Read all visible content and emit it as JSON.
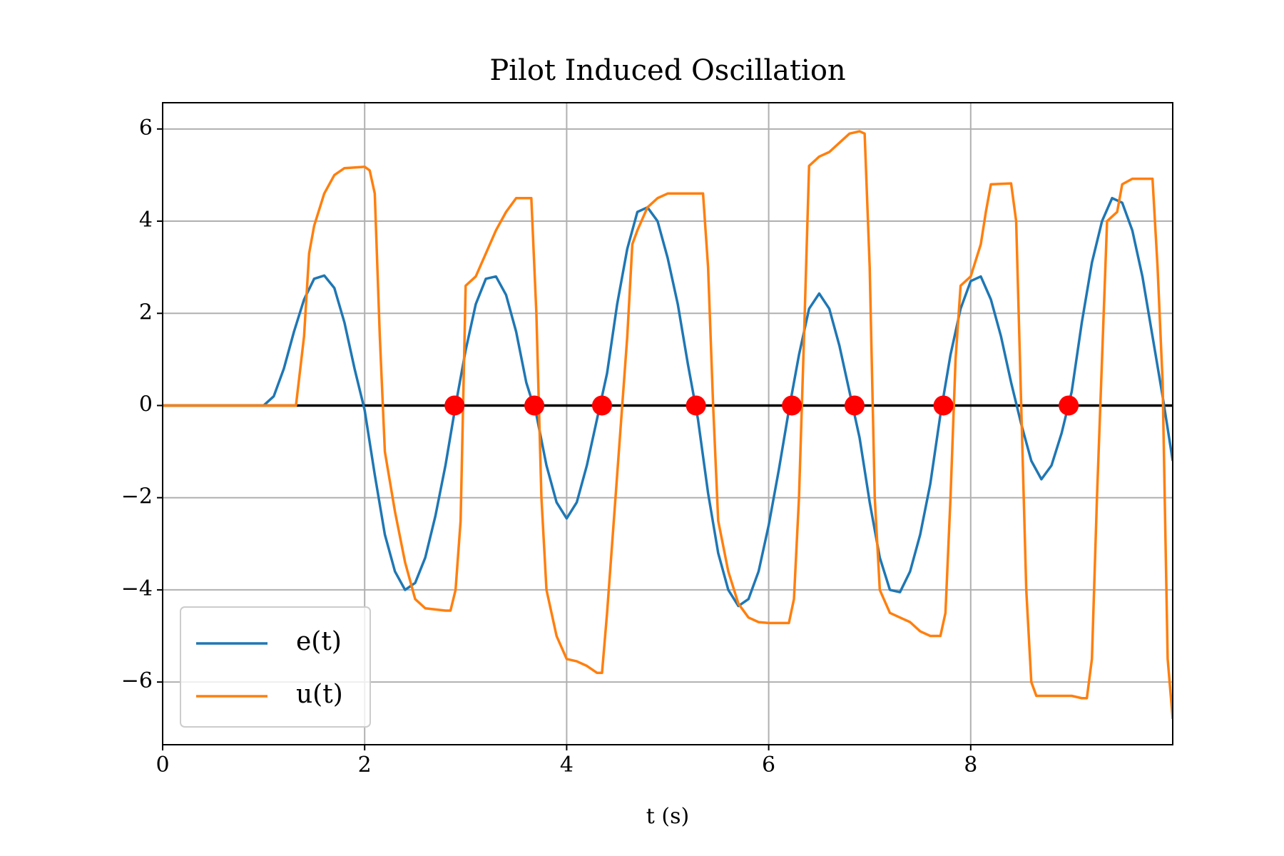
{
  "chart_data": {
    "type": "line",
    "title": "Pilot Induced Oscillation",
    "x_label": "t (s)",
    "xlim": [
      0,
      10
    ],
    "xticks": [
      0,
      2,
      4,
      6,
      8
    ],
    "ylim": [
      -7.36,
      6.57
    ],
    "yticks": [
      {
        "value": -6,
        "label": "−6"
      },
      {
        "value": -4,
        "label": "−4"
      },
      {
        "value": -2,
        "label": "−2"
      },
      0,
      2,
      4,
      6
    ],
    "grid": true,
    "legend": "lower left",
    "hlines": [
      {
        "y": 0,
        "color": "#000000"
      }
    ],
    "series": [
      {
        "name": "e(t)",
        "type": "line",
        "color": "#1f77b4",
        "x": [
          0,
          0.5,
          1.0,
          1.1,
          1.2,
          1.3,
          1.4,
          1.5,
          1.6,
          1.7,
          1.8,
          1.9,
          2.0,
          2.1,
          2.2,
          2.3,
          2.4,
          2.5,
          2.6,
          2.7,
          2.8,
          2.9,
          3.0,
          3.1,
          3.2,
          3.3,
          3.4,
          3.5,
          3.6,
          3.7,
          3.8,
          3.9,
          4.0,
          4.1,
          4.2,
          4.3,
          4.4,
          4.5,
          4.6,
          4.7,
          4.8,
          4.9,
          5.0,
          5.1,
          5.2,
          5.3,
          5.4,
          5.5,
          5.6,
          5.7,
          5.8,
          5.9,
          6.0,
          6.1,
          6.2,
          6.3,
          6.4,
          6.5,
          6.6,
          6.7,
          6.8,
          6.9,
          7.0,
          7.1,
          7.2,
          7.3,
          7.4,
          7.5,
          7.6,
          7.7,
          7.8,
          7.9,
          8.0,
          8.1,
          8.2,
          8.3,
          8.4,
          8.5,
          8.6,
          8.7,
          8.8,
          8.9,
          9.0,
          9.1,
          9.2,
          9.3,
          9.4,
          9.5,
          9.6,
          9.7,
          9.8,
          9.9,
          10.0
        ],
        "values": [
          0,
          0,
          0,
          0.2,
          0.8,
          1.6,
          2.3,
          2.75,
          2.82,
          2.55,
          1.8,
          0.8,
          -0.1,
          -1.5,
          -2.8,
          -3.6,
          -4.0,
          -3.85,
          -3.3,
          -2.4,
          -1.3,
          0,
          1.2,
          2.2,
          2.75,
          2.8,
          2.4,
          1.6,
          0.5,
          -0.2,
          -1.3,
          -2.1,
          -2.45,
          -2.1,
          -1.3,
          -0.3,
          0.7,
          2.2,
          3.4,
          4.2,
          4.3,
          4.0,
          3.2,
          2.2,
          0.9,
          -0.3,
          -1.9,
          -3.2,
          -4.0,
          -4.35,
          -4.2,
          -3.6,
          -2.6,
          -1.4,
          -0.1,
          1.1,
          2.1,
          2.43,
          2.1,
          1.3,
          0.3,
          -0.7,
          -2.1,
          -3.3,
          -4.0,
          -4.05,
          -3.6,
          -2.8,
          -1.7,
          -0.2,
          1.1,
          2.1,
          2.7,
          2.8,
          2.3,
          1.5,
          0.5,
          -0.4,
          -1.2,
          -1.6,
          -1.3,
          -0.6,
          0.3,
          1.8,
          3.1,
          4.0,
          4.5,
          4.4,
          3.8,
          2.8,
          1.5,
          0.2,
          -1.2
        ]
      },
      {
        "name": "u(t)",
        "type": "line",
        "color": "#ff7f0e",
        "x": [
          0,
          1.32,
          1.4,
          1.45,
          1.5,
          1.6,
          1.7,
          1.8,
          2.0,
          2.05,
          2.1,
          2.15,
          2.2,
          2.3,
          2.4,
          2.5,
          2.6,
          2.8,
          2.85,
          2.9,
          2.95,
          3.0,
          3.1,
          3.2,
          3.3,
          3.4,
          3.5,
          3.65,
          3.7,
          3.75,
          3.8,
          3.9,
          4.0,
          4.1,
          4.2,
          4.3,
          4.35,
          4.4,
          4.5,
          4.6,
          4.65,
          4.7,
          4.8,
          4.9,
          5.0,
          5.35,
          5.4,
          5.45,
          5.5,
          5.6,
          5.7,
          5.8,
          5.9,
          6.0,
          6.2,
          6.25,
          6.3,
          6.35,
          6.4,
          6.5,
          6.6,
          6.7,
          6.8,
          6.9,
          6.95,
          7.0,
          7.05,
          7.1,
          7.2,
          7.3,
          7.4,
          7.5,
          7.6,
          7.7,
          7.75,
          7.8,
          7.85,
          7.9,
          8.0,
          8.1,
          8.15,
          8.2,
          8.4,
          8.45,
          8.5,
          8.55,
          8.6,
          8.65,
          9.0,
          9.1,
          9.15,
          9.2,
          9.25,
          9.3,
          9.35,
          9.4,
          9.45,
          9.5,
          9.6,
          9.8,
          9.85,
          9.9,
          9.95,
          10.0
        ],
        "values": [
          0,
          0,
          1.5,
          3.3,
          3.9,
          4.6,
          5.0,
          5.15,
          5.18,
          5.1,
          4.6,
          1.5,
          -1.0,
          -2.3,
          -3.4,
          -4.2,
          -4.4,
          -4.45,
          -4.45,
          -4.0,
          -2.5,
          2.6,
          2.8,
          3.3,
          3.8,
          4.2,
          4.5,
          4.5,
          2.0,
          -2.0,
          -4.0,
          -5.0,
          -5.5,
          -5.55,
          -5.65,
          -5.8,
          -5.8,
          -4.5,
          -1.5,
          1.5,
          3.5,
          3.8,
          4.3,
          4.5,
          4.6,
          4.6,
          3.0,
          0.0,
          -2.5,
          -3.6,
          -4.3,
          -4.6,
          -4.7,
          -4.72,
          -4.72,
          -4.2,
          -2.0,
          1.5,
          5.2,
          5.4,
          5.5,
          5.7,
          5.9,
          5.95,
          5.9,
          3.0,
          -2.0,
          -4.0,
          -4.5,
          -4.6,
          -4.7,
          -4.9,
          -5.0,
          -5.0,
          -4.5,
          -2.0,
          1.0,
          2.6,
          2.8,
          3.5,
          4.2,
          4.8,
          4.82,
          4.0,
          0.0,
          -4.0,
          -6.0,
          -6.3,
          -6.3,
          -6.35,
          -6.35,
          -5.5,
          -2.0,
          1.0,
          4.0,
          4.1,
          4.2,
          4.8,
          4.92,
          4.92,
          3.0,
          0.5,
          -5.5,
          -6.8
        ]
      },
      {
        "type": "scatter",
        "color": "#ff0000",
        "x": [
          2.89,
          3.68,
          4.35,
          5.28,
          6.23,
          6.85,
          7.73,
          8.97
        ],
        "values": [
          0,
          0,
          0,
          0,
          0,
          0,
          0,
          0
        ]
      }
    ]
  }
}
